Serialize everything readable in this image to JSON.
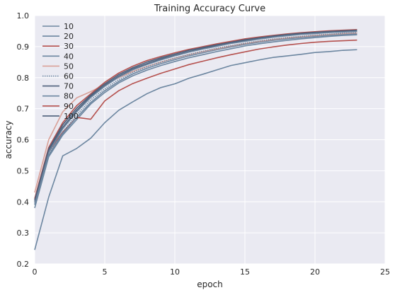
{
  "chart_data": {
    "type": "line",
    "title": "Training Accuracy Curve",
    "xlabel": "epoch",
    "ylabel": "accuracy",
    "xlim": [
      0,
      25
    ],
    "ylim": [
      0.2,
      1.0
    ],
    "xticks": [
      "0",
      "5",
      "10",
      "15",
      "20",
      "25"
    ],
    "yticks": [
      "0.2",
      "0.3",
      "0.4",
      "0.5",
      "0.6",
      "0.7",
      "0.8",
      "0.9",
      "1.0"
    ],
    "grid": true,
    "legend_position": "top-left",
    "colors": {
      "background": "#EAEAF2",
      "grid": "#FFFFFF",
      "blue_gray": "#6C86A0",
      "dark_blue": "#4C5F7A",
      "red": "#B5514E",
      "salmon": "#D9A097",
      "text": "#262626"
    },
    "x": [
      0,
      1,
      2,
      3,
      4,
      5,
      6,
      7,
      8,
      9,
      10,
      11,
      12,
      13,
      14,
      15,
      16,
      17,
      18,
      19,
      20,
      21,
      22,
      23
    ],
    "series": [
      {
        "name": "10",
        "color": "#6C86A0",
        "style": "solid",
        "values": [
          0.245,
          0.415,
          0.548,
          0.572,
          0.605,
          0.655,
          0.695,
          0.722,
          0.748,
          0.768,
          0.78,
          0.798,
          0.811,
          0.825,
          0.839,
          0.848,
          0.857,
          0.865,
          0.87,
          0.875,
          0.881,
          0.884,
          0.888,
          0.89
        ]
      },
      {
        "name": "20",
        "color": "#6C86A0",
        "style": "solid",
        "values": [
          0.38,
          0.545,
          0.615,
          0.665,
          0.715,
          0.752,
          0.783,
          0.806,
          0.824,
          0.839,
          0.852,
          0.864,
          0.874,
          0.884,
          0.893,
          0.902,
          0.909,
          0.915,
          0.92,
          0.925,
          0.929,
          0.933,
          0.936,
          0.938
        ]
      },
      {
        "name": "30",
        "color": "#B5514E",
        "style": "solid",
        "values": [
          0.4,
          0.56,
          0.625,
          0.672,
          0.666,
          0.725,
          0.758,
          0.781,
          0.798,
          0.814,
          0.828,
          0.842,
          0.853,
          0.864,
          0.874,
          0.883,
          0.892,
          0.899,
          0.905,
          0.91,
          0.914,
          0.917,
          0.919,
          0.921
        ]
      },
      {
        "name": "40",
        "color": "#6C86A0",
        "style": "solid",
        "values": [
          0.39,
          0.55,
          0.62,
          0.672,
          0.72,
          0.758,
          0.788,
          0.812,
          0.83,
          0.845,
          0.858,
          0.87,
          0.88,
          0.89,
          0.899,
          0.907,
          0.914,
          0.92,
          0.925,
          0.929,
          0.933,
          0.936,
          0.939,
          0.941
        ]
      },
      {
        "name": "50",
        "color": "#D9A097",
        "style": "solid",
        "values": [
          0.43,
          0.6,
          0.69,
          0.735,
          0.755,
          0.778,
          0.8,
          0.82,
          0.836,
          0.85,
          0.863,
          0.874,
          0.884,
          0.893,
          0.902,
          0.91,
          0.917,
          0.923,
          0.928,
          0.932,
          0.936,
          0.939,
          0.942,
          0.944
        ]
      },
      {
        "name": "60",
        "color": "#6C86A0",
        "style": "dotted",
        "values": [
          0.395,
          0.555,
          0.625,
          0.68,
          0.728,
          0.764,
          0.794,
          0.817,
          0.835,
          0.85,
          0.863,
          0.875,
          0.885,
          0.895,
          0.903,
          0.911,
          0.918,
          0.924,
          0.929,
          0.933,
          0.937,
          0.94,
          0.943,
          0.945
        ]
      },
      {
        "name": "70",
        "color": "#4C5F7A",
        "style": "solid",
        "values": [
          0.4,
          0.565,
          0.64,
          0.695,
          0.74,
          0.775,
          0.805,
          0.828,
          0.845,
          0.86,
          0.872,
          0.884,
          0.894,
          0.903,
          0.911,
          0.919,
          0.925,
          0.931,
          0.936,
          0.94,
          0.943,
          0.946,
          0.948,
          0.95
        ]
      },
      {
        "name": "80",
        "color": "#6C86A0",
        "style": "solid",
        "values": [
          0.4,
          0.56,
          0.635,
          0.69,
          0.736,
          0.772,
          0.802,
          0.825,
          0.842,
          0.857,
          0.87,
          0.882,
          0.892,
          0.901,
          0.91,
          0.917,
          0.924,
          0.93,
          0.935,
          0.939,
          0.942,
          0.945,
          0.947,
          0.949
        ]
      },
      {
        "name": "90",
        "color": "#B5514E",
        "style": "solid",
        "values": [
          0.41,
          0.575,
          0.655,
          0.71,
          0.748,
          0.785,
          0.815,
          0.837,
          0.855,
          0.868,
          0.88,
          0.891,
          0.9,
          0.909,
          0.917,
          0.925,
          0.931,
          0.936,
          0.941,
          0.945,
          0.948,
          0.951,
          0.953,
          0.955
        ]
      },
      {
        "name": "100",
        "color": "#4C5F7A",
        "style": "solid",
        "values": [
          0.405,
          0.57,
          0.648,
          0.702,
          0.744,
          0.78,
          0.81,
          0.832,
          0.85,
          0.864,
          0.876,
          0.888,
          0.897,
          0.906,
          0.914,
          0.922,
          0.928,
          0.934,
          0.939,
          0.943,
          0.946,
          0.949,
          0.951,
          0.953
        ]
      }
    ]
  }
}
